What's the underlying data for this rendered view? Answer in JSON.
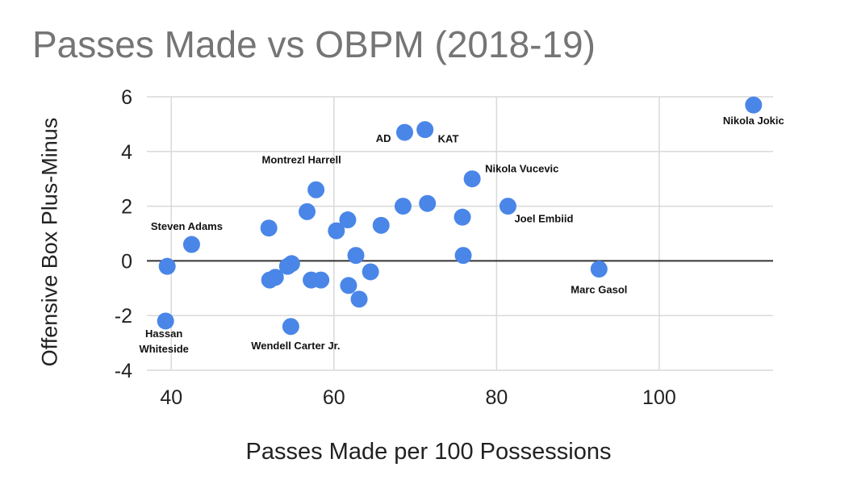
{
  "chart_data": {
    "type": "scatter",
    "title": "Passes Made vs OBPM (2018-19)",
    "xlabel": "Passes Made per 100 Possessions",
    "ylabel": "Offensive Box Plus-Minus",
    "xlim": [
      37,
      114
    ],
    "ylim": [
      -4,
      6
    ],
    "xticks": [
      "40",
      "60",
      "80",
      "100"
    ],
    "yticks": [
      "6",
      "4",
      "2",
      "0",
      "-2",
      "-4"
    ],
    "grid": true,
    "point_color": "#4a86e8",
    "points": [
      {
        "x": 111.6,
        "y": 5.7,
        "label": "Nikola Jokic"
      },
      {
        "x": 68.7,
        "y": 4.7,
        "label": "AD"
      },
      {
        "x": 71.2,
        "y": 4.8,
        "label": "KAT"
      },
      {
        "x": 77.0,
        "y": 3.0,
        "label": "Nikola Vucevic"
      },
      {
        "x": 57.8,
        "y": 2.6,
        "label": "Montrezl Harrell"
      },
      {
        "x": 81.4,
        "y": 2.0,
        "label": "Joel Embiid"
      },
      {
        "x": 42.5,
        "y": 0.6,
        "label": "Steven Adams"
      },
      {
        "x": 92.6,
        "y": -0.3,
        "label": "Marc Gasol"
      },
      {
        "x": 39.3,
        "y": -2.2,
        "label": "Hassan Whiteside"
      },
      {
        "x": 54.7,
        "y": -2.4,
        "label": "Wendell Carter Jr."
      },
      {
        "x": 39.5,
        "y": -0.2
      },
      {
        "x": 52.0,
        "y": 1.2
      },
      {
        "x": 52.1,
        "y": -0.7
      },
      {
        "x": 52.8,
        "y": -0.6
      },
      {
        "x": 54.3,
        "y": -0.2
      },
      {
        "x": 54.8,
        "y": -0.1
      },
      {
        "x": 56.7,
        "y": 1.8
      },
      {
        "x": 57.2,
        "y": -0.7
      },
      {
        "x": 58.4,
        "y": -0.7
      },
      {
        "x": 60.3,
        "y": 1.1
      },
      {
        "x": 61.7,
        "y": 1.5
      },
      {
        "x": 61.8,
        "y": -0.9
      },
      {
        "x": 62.7,
        "y": 0.2
      },
      {
        "x": 63.1,
        "y": -1.4
      },
      {
        "x": 64.5,
        "y": -0.4
      },
      {
        "x": 65.8,
        "y": 1.3
      },
      {
        "x": 68.5,
        "y": 2.0
      },
      {
        "x": 71.5,
        "y": 2.1
      },
      {
        "x": 75.8,
        "y": 1.6
      },
      {
        "x": 75.9,
        "y": 0.2
      }
    ]
  }
}
